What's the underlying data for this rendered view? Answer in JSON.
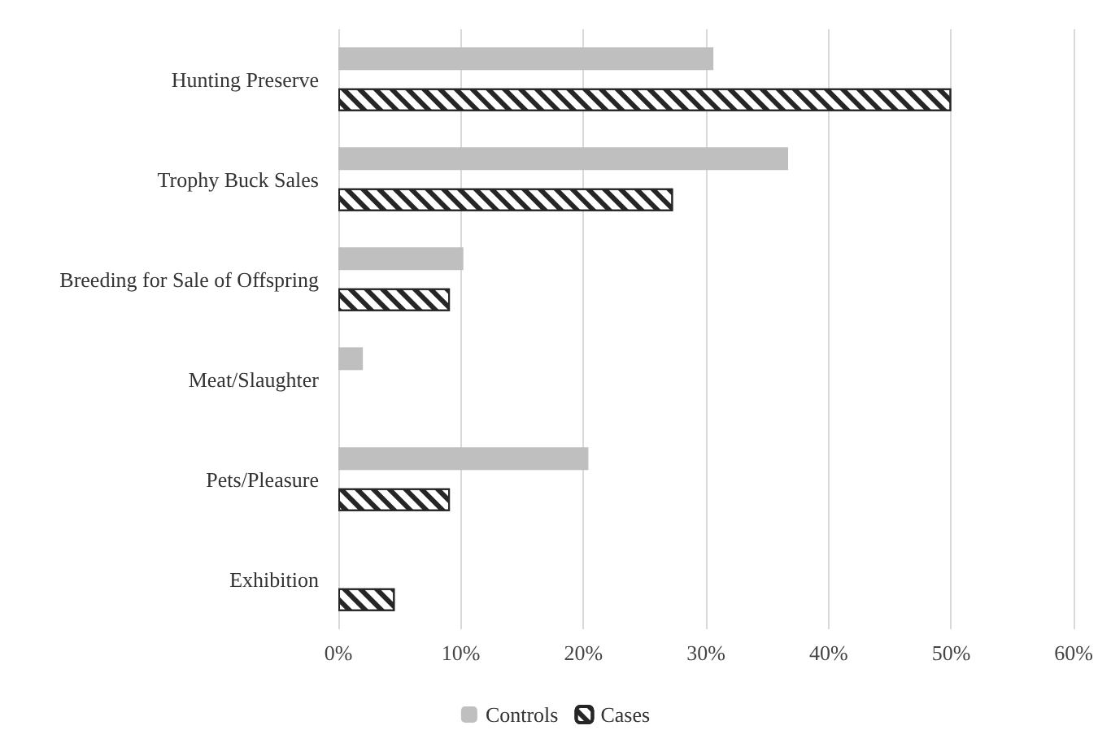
{
  "chart_data": {
    "type": "bar",
    "orientation": "horizontal",
    "categories": [
      "Hunting Preserve",
      "Trophy Buck Sales",
      "Breeding for Sale of Offspring",
      "Meat/Slaughter",
      "Pets/Pleasure",
      "Exhibition"
    ],
    "series": [
      {
        "name": "Controls",
        "color": "#bfbfbf",
        "values": [
          30.6,
          36.7,
          10.2,
          2.0,
          20.4,
          0
        ]
      },
      {
        "name": "Cases",
        "color": "#262626",
        "values": [
          50,
          27.3,
          9.1,
          0,
          9.1,
          4.6
        ]
      }
    ],
    "xlim": [
      0,
      60
    ],
    "xticks": [
      {
        "value": 0,
        "label": "0%"
      },
      {
        "value": 10,
        "label": "10%"
      },
      {
        "value": 20,
        "label": "20%"
      },
      {
        "value": 30,
        "label": "30%"
      },
      {
        "value": 40,
        "label": "40%"
      },
      {
        "value": 50,
        "label": "50%"
      },
      {
        "value": 60,
        "label": "60%"
      }
    ],
    "grid": "x",
    "legend": "bottom"
  }
}
